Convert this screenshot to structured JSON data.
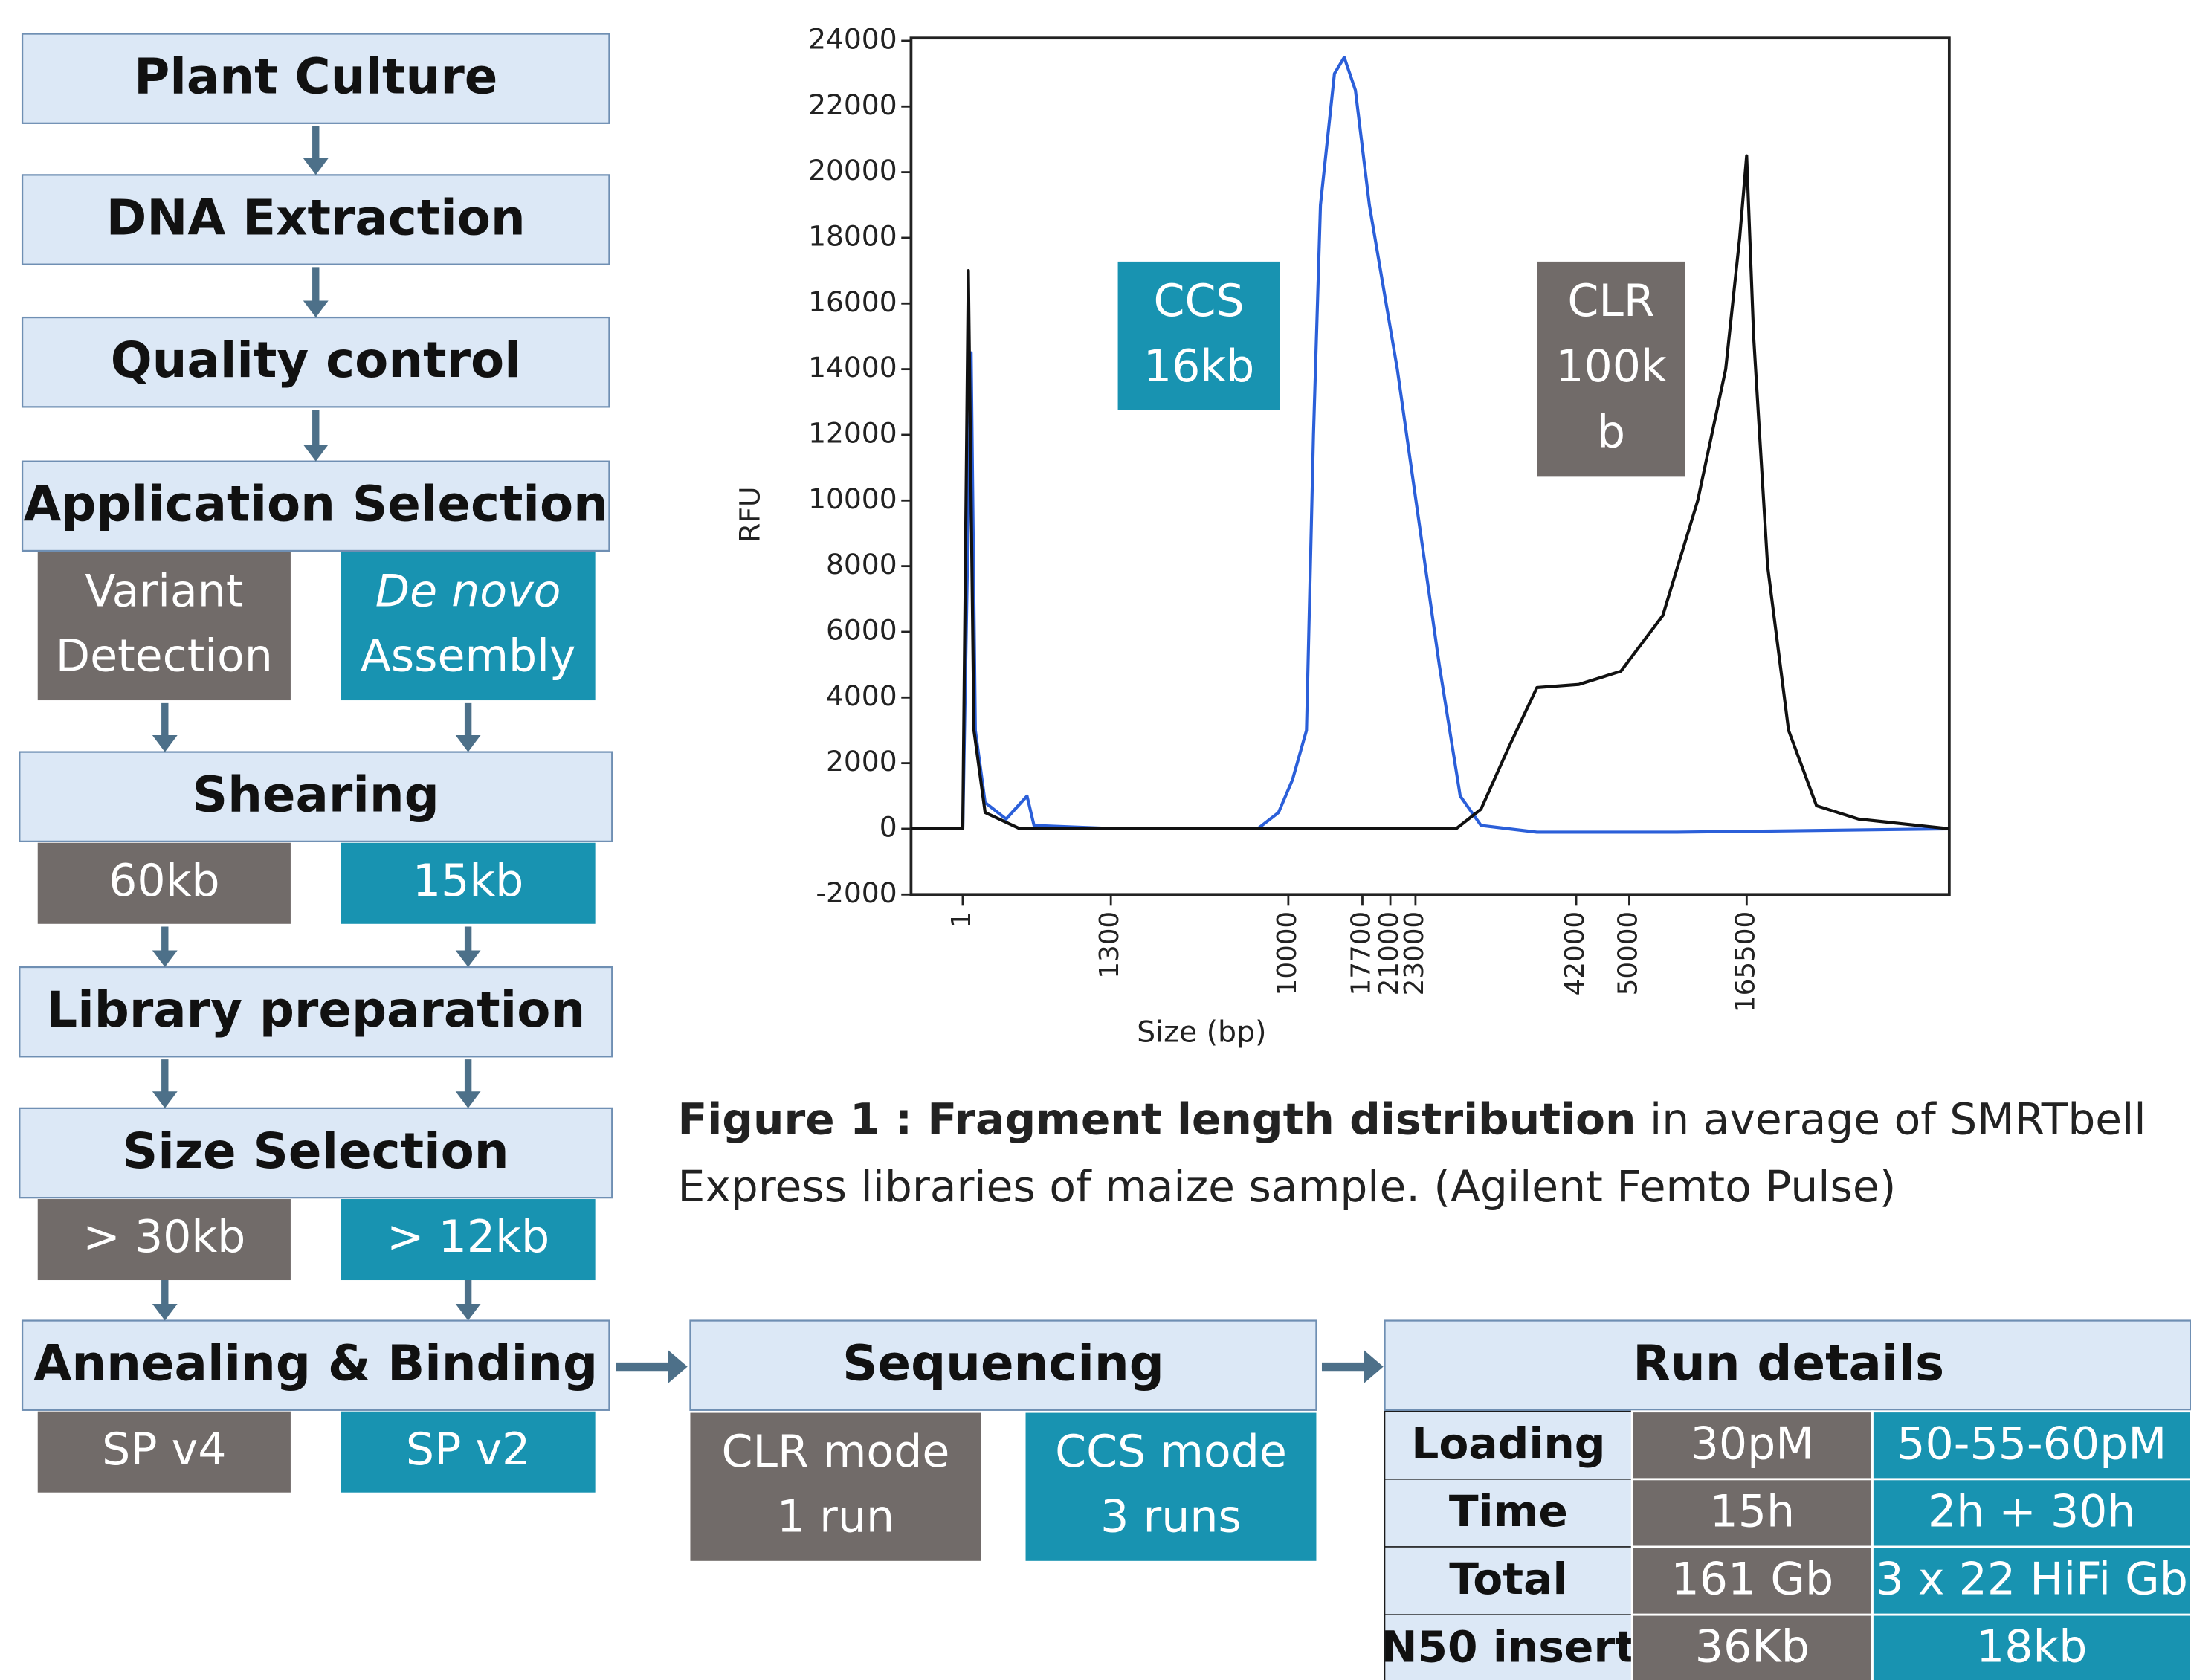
{
  "flowchart": {
    "steps": [
      {
        "label": "Plant Culture"
      },
      {
        "label": "DNA Extraction"
      },
      {
        "label": "Quality control"
      },
      {
        "label": "Application Selection",
        "options": [
          [
            "Variant",
            "Detection"
          ],
          [
            "De novo",
            "Assembly"
          ]
        ]
      },
      {
        "label": "Shearing",
        "options": [
          [
            "60kb"
          ],
          [
            "15kb"
          ]
        ]
      },
      {
        "label": "Library preparation"
      },
      {
        "label": "Size Selection",
        "options": [
          [
            "> 30kb"
          ],
          [
            "> 12kb"
          ]
        ]
      },
      {
        "label": "Annealing & Binding",
        "options": [
          [
            "SP v4"
          ],
          [
            "SP v2"
          ]
        ]
      }
    ]
  },
  "sequencing": {
    "label": "Sequencing",
    "options": [
      [
        "CLR mode",
        "1 run"
      ],
      [
        "CCS mode",
        "3 runs"
      ]
    ]
  },
  "run_details": {
    "title": "Run details",
    "rows": [
      [
        "Loading",
        "30pM",
        "50-55-60pM"
      ],
      [
        "Time",
        "15h",
        "2h + 30h"
      ],
      [
        "Total",
        "161 Gb",
        "3 x 22 HiFi Gb"
      ],
      [
        "N50 insert",
        "36Kb",
        "18kb"
      ]
    ]
  },
  "chart_data": {
    "type": "line",
    "x_label": "Size (bp)",
    "y_label": "RFU",
    "xlim": [
      -450,
      364875
    ],
    "ylim": [
      -2000,
      24000
    ],
    "xticks": [
      1,
      1300,
      10000,
      17700,
      21000,
      23000,
      42000,
      50000,
      165500
    ],
    "yticks": [
      -2000,
      0,
      2000,
      4000,
      6000,
      8000,
      10000,
      12000,
      14000,
      16000,
      18000,
      20000,
      22000,
      24000
    ],
    "annotations": [
      [
        "CCS",
        "16kb"
      ],
      [
        "CLR",
        "100k",
        "b"
      ]
    ],
    "series": [
      {
        "color": "#2b5fd9",
        "x": [
          -450,
          1,
          75,
          111,
          197,
          381,
          565,
          626,
          1643,
          8493,
          9520,
          10436,
          11889,
          12615,
          13342,
          14795,
          15812,
          16974,
          18525,
          21555,
          23330,
          25805,
          28280,
          30755,
          37355,
          96750,
          364875
        ],
        "values": [
          0,
          0,
          14500,
          3000,
          800,
          300,
          1000,
          100,
          0,
          0,
          500,
          1500,
          3000,
          12000,
          19000,
          23000,
          23500,
          22500,
          19000,
          14000,
          9500,
          5000,
          1000,
          100,
          -100,
          -100,
          0
        ]
      },
      {
        "color": "#111111",
        "x": [
          -450,
          1,
          50,
          99,
          197,
          503,
          8493,
          27785,
          30755,
          34055,
          37355,
          42421,
          48737,
          83000,
          117375,
          144875,
          158625,
          165500,
          172375,
          186125,
          206750,
          234250,
          275500,
          364875
        ],
        "values": [
          0,
          0,
          17000,
          3000,
          500,
          0,
          0,
          0,
          600,
          2500,
          4300,
          4400,
          4800,
          6500,
          10000,
          14000,
          18000,
          20500,
          15000,
          8000,
          3000,
          700,
          300,
          0
        ]
      }
    ]
  },
  "caption": {
    "bold": "Figure 1 : Fragment length distribution",
    "line1": " in average of SMRTbell",
    "line2": "Express libraries of maize sample. (Agilent Femto Pulse)"
  }
}
